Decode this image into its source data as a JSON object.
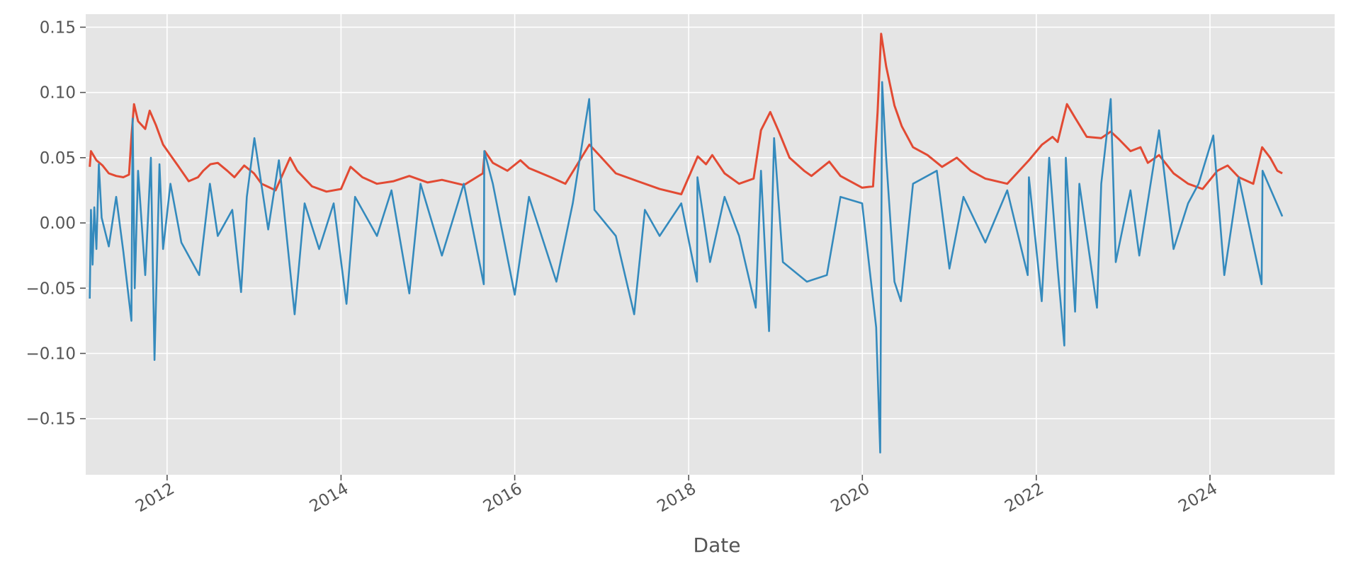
{
  "chart_data": {
    "type": "line",
    "title": "",
    "xlabel": "Date",
    "ylabel": "",
    "x_range": [
      "2011-01-24",
      "2025-06-08"
    ],
    "ylim": [
      -0.193,
      0.16
    ],
    "x_ticks": [
      {
        "date": "2012-01-01",
        "label": "2012"
      },
      {
        "date": "2014-01-01",
        "label": "2014"
      },
      {
        "date": "2016-01-01",
        "label": "2016"
      },
      {
        "date": "2018-01-01",
        "label": "2018"
      },
      {
        "date": "2020-01-01",
        "label": "2020"
      },
      {
        "date": "2022-01-01",
        "label": "2022"
      },
      {
        "date": "2024-01-01",
        "label": "2024"
      }
    ],
    "y_ticks": [
      {
        "value": 0.15,
        "label": "0.15"
      },
      {
        "value": 0.1,
        "label": "0.10"
      },
      {
        "value": 0.05,
        "label": "0.05"
      },
      {
        "value": 0.0,
        "label": "0.00"
      },
      {
        "value": -0.05,
        "label": "−0.05"
      },
      {
        "value": -0.1,
        "label": "−0.10"
      },
      {
        "value": -0.15,
        "label": "−0.15"
      }
    ],
    "grid": true,
    "background": "#e5e5e5",
    "gridColor": "#ffffff",
    "series": [
      {
        "color": "#e24a33",
        "points": [
          [
            "2011-02-10",
            0.043
          ],
          [
            "2011-02-15",
            0.055
          ],
          [
            "2011-03-10",
            0.048
          ],
          [
            "2011-04-05",
            0.044
          ],
          [
            "2011-05-01",
            0.038
          ],
          [
            "2011-06-01",
            0.036
          ],
          [
            "2011-07-01",
            0.035
          ],
          [
            "2011-07-25",
            0.037
          ],
          [
            "2011-08-05",
            0.068
          ],
          [
            "2011-08-15",
            0.091
          ],
          [
            "2011-09-01",
            0.078
          ],
          [
            "2011-10-01",
            0.072
          ],
          [
            "2011-10-20",
            0.086
          ],
          [
            "2011-11-15",
            0.075
          ],
          [
            "2011-12-15",
            0.06
          ],
          [
            "2012-01-15",
            0.052
          ],
          [
            "2012-02-15",
            0.044
          ],
          [
            "2012-04-01",
            0.032
          ],
          [
            "2012-05-10",
            0.035
          ],
          [
            "2012-06-01",
            0.04
          ],
          [
            "2012-07-01",
            0.045
          ],
          [
            "2012-08-01",
            0.046
          ],
          [
            "2012-09-10",
            0.04
          ],
          [
            "2012-10-10",
            0.035
          ],
          [
            "2012-11-20",
            0.044
          ],
          [
            "2012-12-31",
            0.038
          ],
          [
            "2013-02-01",
            0.03
          ],
          [
            "2013-04-01",
            0.025
          ],
          [
            "2013-06-01",
            0.05
          ],
          [
            "2013-07-01",
            0.04
          ],
          [
            "2013-09-01",
            0.028
          ],
          [
            "2013-11-01",
            0.024
          ],
          [
            "2014-01-01",
            0.026
          ],
          [
            "2014-02-10",
            0.043
          ],
          [
            "2014-04-01",
            0.035
          ],
          [
            "2014-06-01",
            0.03
          ],
          [
            "2014-08-10",
            0.032
          ],
          [
            "2014-10-15",
            0.036
          ],
          [
            "2014-12-31",
            0.031
          ],
          [
            "2015-03-01",
            0.033
          ],
          [
            "2015-06-01",
            0.029
          ],
          [
            "2015-08-20",
            0.038
          ],
          [
            "2015-08-28",
            0.055
          ],
          [
            "2015-10-01",
            0.046
          ],
          [
            "2015-12-01",
            0.04
          ],
          [
            "2016-01-25",
            0.048
          ],
          [
            "2016-03-01",
            0.042
          ],
          [
            "2016-06-01",
            0.035
          ],
          [
            "2016-08-01",
            0.03
          ],
          [
            "2016-11-10",
            0.06
          ],
          [
            "2016-12-31",
            0.05
          ],
          [
            "2017-03-01",
            0.038
          ],
          [
            "2017-06-01",
            0.032
          ],
          [
            "2017-09-01",
            0.026
          ],
          [
            "2017-12-01",
            0.022
          ],
          [
            "2018-02-08",
            0.051
          ],
          [
            "2018-03-15",
            0.045
          ],
          [
            "2018-04-10",
            0.052
          ],
          [
            "2018-06-01",
            0.038
          ],
          [
            "2018-08-01",
            0.03
          ],
          [
            "2018-10-01",
            0.034
          ],
          [
            "2018-11-01",
            0.071
          ],
          [
            "2018-12-10",
            0.085
          ],
          [
            "2019-01-15",
            0.07
          ],
          [
            "2019-03-01",
            0.05
          ],
          [
            "2019-05-01",
            0.04
          ],
          [
            "2019-06-01",
            0.036
          ],
          [
            "2019-08-15",
            0.047
          ],
          [
            "2019-10-01",
            0.036
          ],
          [
            "2019-12-31",
            0.027
          ],
          [
            "2020-02-15",
            0.028
          ],
          [
            "2020-03-05",
            0.085
          ],
          [
            "2020-03-20",
            0.145
          ],
          [
            "2020-04-10",
            0.12
          ],
          [
            "2020-05-15",
            0.09
          ],
          [
            "2020-06-15",
            0.074
          ],
          [
            "2020-08-01",
            0.058
          ],
          [
            "2020-10-01",
            0.052
          ],
          [
            "2020-12-01",
            0.043
          ],
          [
            "2021-02-01",
            0.05
          ],
          [
            "2021-04-01",
            0.04
          ],
          [
            "2021-06-01",
            0.034
          ],
          [
            "2021-09-01",
            0.03
          ],
          [
            "2021-12-01",
            0.048
          ],
          [
            "2022-01-25",
            0.06
          ],
          [
            "2022-03-10",
            0.066
          ],
          [
            "2022-04-01",
            0.062
          ],
          [
            "2022-05-10",
            0.091
          ],
          [
            "2022-06-15",
            0.08
          ],
          [
            "2022-08-01",
            0.066
          ],
          [
            "2022-10-01",
            0.065
          ],
          [
            "2022-11-10",
            0.07
          ],
          [
            "2022-12-15",
            0.064
          ],
          [
            "2023-02-01",
            0.055
          ],
          [
            "2023-03-15",
            0.058
          ],
          [
            "2023-04-15",
            0.046
          ],
          [
            "2023-06-01",
            0.052
          ],
          [
            "2023-08-01",
            0.038
          ],
          [
            "2023-10-01",
            0.03
          ],
          [
            "2023-12-01",
            0.026
          ],
          [
            "2024-02-01",
            0.04
          ],
          [
            "2024-03-15",
            0.044
          ],
          [
            "2024-05-01",
            0.035
          ],
          [
            "2024-07-01",
            0.03
          ],
          [
            "2024-08-07",
            0.058
          ],
          [
            "2024-09-10",
            0.05
          ],
          [
            "2024-10-10",
            0.04
          ],
          [
            "2024-10-31",
            0.038
          ]
        ]
      },
      {
        "color": "#348abd",
        "points": [
          [
            "2011-02-10",
            -0.058
          ],
          [
            "2011-02-15",
            0.01
          ],
          [
            "2011-02-22",
            -0.032
          ],
          [
            "2011-03-01",
            0.012
          ],
          [
            "2011-03-10",
            -0.02
          ],
          [
            "2011-03-20",
            0.045
          ],
          [
            "2011-04-01",
            0.004
          ],
          [
            "2011-05-01",
            -0.018
          ],
          [
            "2011-06-01",
            0.02
          ],
          [
            "2011-07-01",
            -0.022
          ],
          [
            "2011-08-04",
            -0.075
          ],
          [
            "2011-08-09",
            0.08
          ],
          [
            "2011-08-18",
            -0.05
          ],
          [
            "2011-09-01",
            0.04
          ],
          [
            "2011-10-01",
            -0.04
          ],
          [
            "2011-10-25",
            0.05
          ],
          [
            "2011-11-09",
            -0.105
          ],
          [
            "2011-11-30",
            0.045
          ],
          [
            "2011-12-15",
            -0.02
          ],
          [
            "2012-01-15",
            0.03
          ],
          [
            "2012-03-01",
            -0.015
          ],
          [
            "2012-05-15",
            -0.04
          ],
          [
            "2012-06-29",
            0.03
          ],
          [
            "2012-08-01",
            -0.01
          ],
          [
            "2012-10-01",
            0.01
          ],
          [
            "2012-11-07",
            -0.053
          ],
          [
            "2012-12-01",
            0.02
          ],
          [
            "2013-01-02",
            0.065
          ],
          [
            "2013-03-01",
            -0.005
          ],
          [
            "2013-04-15",
            0.048
          ],
          [
            "2013-06-20",
            -0.07
          ],
          [
            "2013-08-01",
            0.015
          ],
          [
            "2013-10-01",
            -0.02
          ],
          [
            "2013-12-01",
            0.015
          ],
          [
            "2014-01-24",
            -0.062
          ],
          [
            "2014-03-01",
            0.02
          ],
          [
            "2014-06-01",
            -0.01
          ],
          [
            "2014-08-01",
            0.025
          ],
          [
            "2014-10-15",
            -0.054
          ],
          [
            "2014-12-01",
            0.03
          ],
          [
            "2015-03-01",
            -0.025
          ],
          [
            "2015-06-01",
            0.03
          ],
          [
            "2015-08-24",
            -0.047
          ],
          [
            "2015-08-26",
            0.055
          ],
          [
            "2015-10-01",
            0.03
          ],
          [
            "2016-01-01",
            -0.055
          ],
          [
            "2016-03-01",
            0.02
          ],
          [
            "2016-06-24",
            -0.045
          ],
          [
            "2016-09-01",
            0.015
          ],
          [
            "2016-11-09",
            0.095
          ],
          [
            "2016-12-01",
            0.01
          ],
          [
            "2017-03-01",
            -0.01
          ],
          [
            "2017-05-17",
            -0.07
          ],
          [
            "2017-07-01",
            0.01
          ],
          [
            "2017-09-01",
            -0.01
          ],
          [
            "2017-12-01",
            0.015
          ],
          [
            "2018-02-05",
            -0.045
          ],
          [
            "2018-02-07",
            0.035
          ],
          [
            "2018-04-01",
            -0.03
          ],
          [
            "2018-06-01",
            0.02
          ],
          [
            "2018-08-01",
            -0.01
          ],
          [
            "2018-10-10",
            -0.065
          ],
          [
            "2018-11-01",
            0.04
          ],
          [
            "2018-12-05",
            -0.083
          ],
          [
            "2018-12-26",
            0.065
          ],
          [
            "2019-02-01",
            -0.03
          ],
          [
            "2019-05-13",
            -0.045
          ],
          [
            "2019-08-05",
            -0.04
          ],
          [
            "2019-10-01",
            0.02
          ],
          [
            "2019-12-31",
            0.015
          ],
          [
            "2020-02-28",
            -0.08
          ],
          [
            "2020-03-16",
            -0.176
          ],
          [
            "2020-03-24",
            0.108
          ],
          [
            "2020-04-10",
            0.05
          ],
          [
            "2020-05-15",
            -0.045
          ],
          [
            "2020-06-11",
            -0.06
          ],
          [
            "2020-08-01",
            0.03
          ],
          [
            "2020-11-09",
            0.04
          ],
          [
            "2021-01-01",
            -0.035
          ],
          [
            "2021-03-01",
            0.02
          ],
          [
            "2021-06-01",
            -0.015
          ],
          [
            "2021-09-01",
            0.025
          ],
          [
            "2021-11-26",
            -0.04
          ],
          [
            "2021-12-01",
            0.035
          ],
          [
            "2022-01-24",
            -0.06
          ],
          [
            "2022-02-24",
            0.05
          ],
          [
            "2022-04-01",
            -0.035
          ],
          [
            "2022-04-29",
            -0.094
          ],
          [
            "2022-05-05",
            0.05
          ],
          [
            "2022-06-13",
            -0.068
          ],
          [
            "2022-07-01",
            0.03
          ],
          [
            "2022-09-13",
            -0.065
          ],
          [
            "2022-10-01",
            0.03
          ],
          [
            "2022-11-10",
            0.095
          ],
          [
            "2022-12-01",
            -0.03
          ],
          [
            "2023-02-01",
            0.025
          ],
          [
            "2023-03-10",
            -0.025
          ],
          [
            "2023-06-01",
            0.071
          ],
          [
            "2023-08-01",
            -0.02
          ],
          [
            "2023-10-01",
            0.015
          ],
          [
            "2023-11-14",
            0.03
          ],
          [
            "2024-01-15",
            0.067
          ],
          [
            "2024-03-01",
            -0.04
          ],
          [
            "2024-05-01",
            0.035
          ],
          [
            "2024-08-05",
            -0.047
          ],
          [
            "2024-08-09",
            0.04
          ],
          [
            "2024-10-31",
            0.005
          ]
        ]
      }
    ]
  }
}
